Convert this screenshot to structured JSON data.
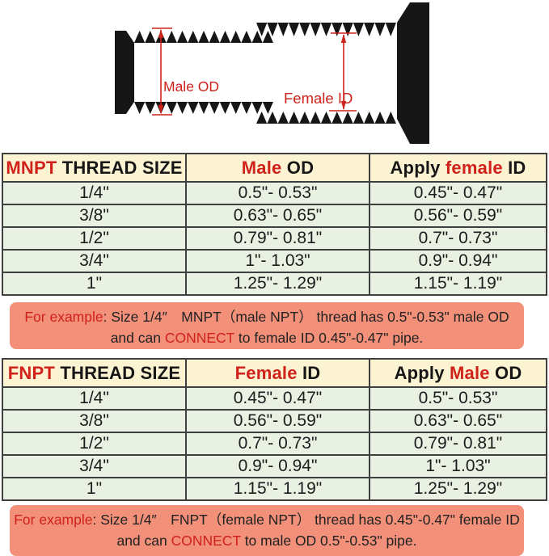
{
  "colors": {
    "red": "#d0211a",
    "ink": "#161616",
    "border": "#3f3f3f",
    "header_bg": "#fcf3d3",
    "row_bg": "#e9f1e2",
    "example_bg": "#f2907a",
    "paper": "#ffffff"
  },
  "diagram": {
    "male_od_label": "Male  OD",
    "female_id_label": "Female ID"
  },
  "tables": [
    {
      "name": "MNPT",
      "header": [
        [
          {
            "t": "MNPT",
            "c": "red"
          },
          {
            "t": " THREAD SIZE"
          }
        ],
        [
          {
            "t": "Male",
            "c": "red"
          },
          {
            "t": " OD"
          }
        ],
        [
          {
            "t": "Apply "
          },
          {
            "t": "female",
            "c": "red"
          },
          {
            "t": " ID"
          }
        ]
      ],
      "rows": [
        [
          "1/4\"",
          "0.5\"- 0.53\"",
          "0.45\"- 0.47\""
        ],
        [
          "3/8\"",
          "0.63\"- 0.65\"",
          "0.56\"- 0.59\""
        ],
        [
          "1/2\"",
          "0.79\"- 0.81\"",
          "0.7\"- 0.73\""
        ],
        [
          "3/4\"",
          "1\"- 1.03\"",
          "0.9\"- 0.94\""
        ],
        [
          "1\"",
          "1.25\"- 1.29\"",
          "1.15\"- 1.19\""
        ]
      ]
    },
    {
      "name": "FNPT",
      "header": [
        [
          {
            "t": "FNPT",
            "c": "red"
          },
          {
            "t": " THREAD SIZE"
          }
        ],
        [
          {
            "t": "Female",
            "c": "red"
          },
          {
            "t": " ID"
          }
        ],
        [
          {
            "t": "Apply "
          },
          {
            "t": "Male",
            "c": "red"
          },
          {
            "t": " OD"
          }
        ]
      ],
      "rows": [
        [
          "1/4\"",
          "0.45\"- 0.47\"",
          "0.5\"- 0.53\""
        ],
        [
          "3/8\"",
          "0.56\"- 0.59\"",
          "0.63\"- 0.65\""
        ],
        [
          "1/2\"",
          "0.7\"- 0.73\"",
          "0.79\"- 0.81\""
        ],
        [
          "3/4\"",
          "0.9\"- 0.94\"",
          "1\"- 1.03\""
        ],
        [
          "1\"",
          "1.15\"- 1.19\"",
          "1.25\"- 1.29\""
        ]
      ]
    }
  ],
  "examples": [
    {
      "line1": [
        {
          "t": "For example",
          "c": "red"
        },
        {
          "t": ": Size 1/4″　MNPT（male NPT） thread has 0.5\"-0.53\" male OD"
        }
      ],
      "line2": [
        {
          "t": "and can "
        },
        {
          "t": "CONNECT",
          "c": "red"
        },
        {
          "t": " to female ID 0.45\"-0.47\" pipe."
        }
      ]
    },
    {
      "line1": [
        {
          "t": "For example",
          "c": "red"
        },
        {
          "t": ": Size 1/4″　FNPT（female NPT） thread has 0.45\"-0.47\" female ID"
        }
      ],
      "line2": [
        {
          "t": "and can "
        },
        {
          "t": "CONNECT",
          "c": "red"
        },
        {
          "t": " to male OD  0.5\"-0.53\" pipe."
        }
      ]
    }
  ]
}
